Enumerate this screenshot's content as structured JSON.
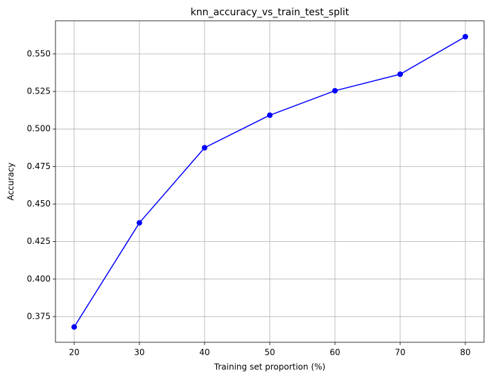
{
  "chart_data": {
    "type": "line",
    "title": "knn_accuracy_vs_train_test_split",
    "x_label": "Training set proportion (%)",
    "y_label": "Accuracy",
    "x": [
      20,
      30,
      40,
      50,
      60,
      70,
      80
    ],
    "series": [
      {
        "color": "#0000ff",
        "values": [
          0.3681,
          0.4375,
          0.4875,
          0.5092,
          0.5255,
          0.5365,
          0.5615
        ]
      }
    ],
    "xlim": [
      17.13,
      82.87
    ],
    "xticks": [
      20,
      30,
      40,
      50,
      60,
      70,
      80
    ],
    "ylim": [
      0.3579,
      0.5721
    ],
    "yticks": [
      0.375,
      {
        "value": 0.4,
        "label": "0.400"
      },
      0.425,
      {
        "value": 0.45,
        "label": "0.450"
      },
      0.475,
      {
        "value": 0.5,
        "label": "0.500"
      },
      0.525,
      {
        "value": 0.55,
        "label": "0.550"
      }
    ],
    "grid": true,
    "marker": "circle"
  }
}
